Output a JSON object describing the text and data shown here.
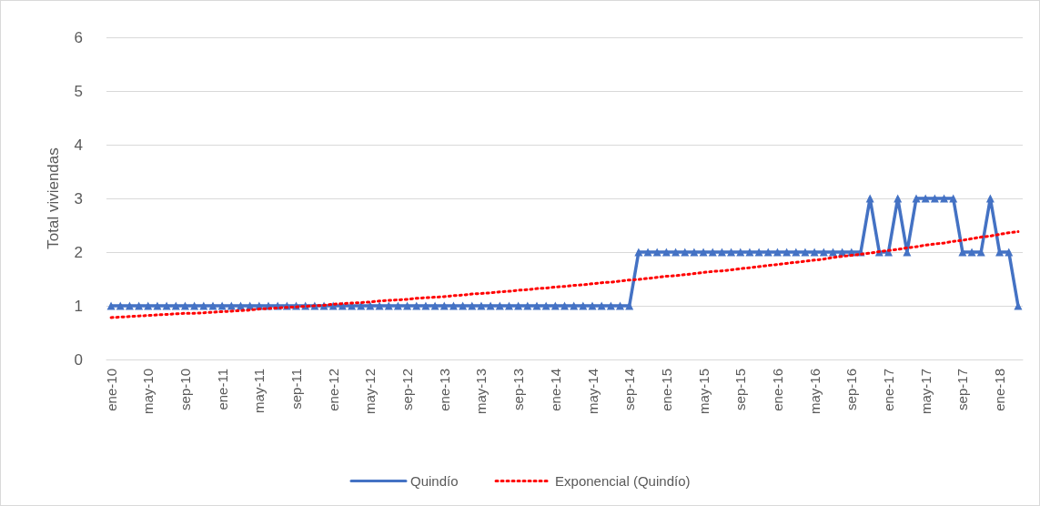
{
  "chart_data": {
    "type": "line",
    "ylabel": "Total viviendas",
    "categories": [
      "ene-10",
      null,
      null,
      null,
      "may-10",
      null,
      null,
      null,
      "sep-10",
      null,
      null,
      null,
      "ene-11",
      null,
      null,
      null,
      "may-11",
      null,
      null,
      null,
      "sep-11",
      null,
      null,
      null,
      "ene-12",
      null,
      null,
      null,
      "may-12",
      null,
      null,
      null,
      "sep-12",
      null,
      null,
      null,
      "ene-13",
      null,
      null,
      null,
      "may-13",
      null,
      null,
      null,
      "sep-13",
      null,
      null,
      null,
      "ene-14",
      null,
      null,
      null,
      "may-14",
      null,
      null,
      null,
      "sep-14",
      null,
      null,
      null,
      "ene-15",
      null,
      null,
      null,
      "may-15",
      null,
      null,
      null,
      "sep-15",
      null,
      null,
      null,
      "ene-16",
      null,
      null,
      null,
      "may-16",
      null,
      null,
      null,
      "sep-16",
      null,
      null,
      null,
      "ene-17",
      null,
      null,
      null,
      "may-17",
      null,
      null,
      null,
      "sep-17",
      null,
      null,
      null,
      "ene-18",
      null,
      null
    ],
    "series": [
      {
        "name": "Quindío",
        "color": "#4472c4",
        "marker": "triangle",
        "line_style": "solid",
        "values": [
          1,
          1,
          1,
          1,
          1,
          1,
          1,
          1,
          1,
          1,
          1,
          1,
          1,
          1,
          1,
          1,
          1,
          1,
          1,
          1,
          1,
          1,
          1,
          1,
          1,
          1,
          1,
          1,
          1,
          1,
          1,
          1,
          1,
          1,
          1,
          1,
          1,
          1,
          1,
          1,
          1,
          1,
          1,
          1,
          1,
          1,
          1,
          1,
          1,
          1,
          1,
          1,
          1,
          1,
          1,
          1,
          1,
          2,
          2,
          2,
          2,
          2,
          2,
          2,
          2,
          2,
          2,
          2,
          2,
          2,
          2,
          2,
          2,
          2,
          2,
          2,
          2,
          2,
          2,
          2,
          2,
          2,
          3,
          2,
          2,
          3,
          2,
          3,
          3,
          3,
          3,
          3,
          2,
          2,
          2,
          3,
          2,
          2,
          1
        ]
      },
      {
        "name": "Exponencial (Quindío)",
        "color": "#ff0000",
        "marker": "none",
        "line_style": "dotted",
        "values": [
          0.78,
          0.79,
          0.8,
          0.81,
          0.82,
          0.83,
          0.84,
          0.85,
          0.86,
          0.86,
          0.87,
          0.88,
          0.89,
          0.9,
          0.91,
          0.92,
          0.94,
          0.95,
          0.96,
          0.97,
          0.98,
          0.99,
          1.0,
          1.01,
          1.03,
          1.04,
          1.05,
          1.06,
          1.07,
          1.09,
          1.1,
          1.11,
          1.12,
          1.14,
          1.15,
          1.16,
          1.17,
          1.19,
          1.2,
          1.22,
          1.23,
          1.24,
          1.26,
          1.27,
          1.29,
          1.3,
          1.32,
          1.33,
          1.35,
          1.36,
          1.38,
          1.39,
          1.41,
          1.43,
          1.44,
          1.46,
          1.48,
          1.49,
          1.51,
          1.53,
          1.55,
          1.56,
          1.58,
          1.6,
          1.62,
          1.64,
          1.65,
          1.67,
          1.69,
          1.71,
          1.73,
          1.75,
          1.77,
          1.79,
          1.81,
          1.83,
          1.85,
          1.87,
          1.9,
          1.92,
          1.94,
          1.96,
          1.98,
          2.01,
          2.03,
          2.05,
          2.08,
          2.1,
          2.13,
          2.15,
          2.17,
          2.2,
          2.22,
          2.25,
          2.28,
          2.3,
          2.33,
          2.36,
          2.38
        ]
      }
    ],
    "ylim": [
      0,
      6
    ],
    "yticks": [
      0,
      1,
      2,
      3,
      4,
      5,
      6
    ],
    "grid": "y",
    "legend": "bottom"
  }
}
